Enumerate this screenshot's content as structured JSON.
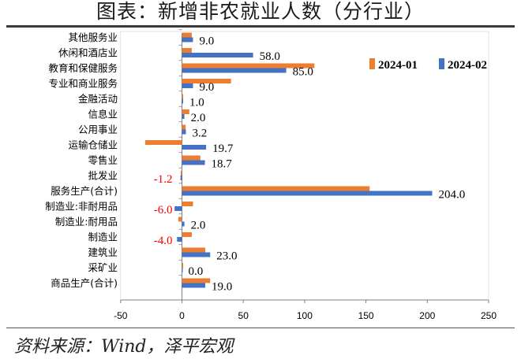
{
  "title": "图表：新增非农就业人数（分行业）",
  "source": "资料来源：Wind，泽平宏观",
  "chart_data": {
    "type": "bar",
    "orientation": "horizontal",
    "categories": [
      "其他服务业",
      "休闲和酒店业",
      "教育和保健服务",
      "专业和商业服务",
      "金融活动",
      "信息业",
      "公用事业",
      "运输仓储业",
      "零售业",
      "批发业",
      "服务生产(合计)",
      "制造业:非耐用品",
      "制造业:耐用品",
      "制造业",
      "建筑业",
      "采矿业",
      "商品生产(合计)"
    ],
    "series": [
      {
        "name": "2024-01",
        "color": "#ED7D31",
        "values": [
          8,
          8,
          108,
          40,
          1,
          6,
          3,
          -30,
          15,
          -1,
          153,
          9,
          -3,
          8,
          19,
          1,
          23
        ]
      },
      {
        "name": "2024-02",
        "color": "#4472C4",
        "values": [
          9.0,
          58.0,
          85.0,
          9.0,
          1.0,
          2.0,
          3.2,
          19.7,
          18.7,
          -1.2,
          204.0,
          -6.0,
          2.0,
          -4.0,
          23.0,
          0.0,
          19.0
        ]
      }
    ],
    "data_labels": [
      "9.0",
      "58.0",
      "85.0",
      "9.0",
      "1.0",
      "2.0",
      "3.2",
      "19.7",
      "18.7",
      "-1.2",
      "204.0",
      "-6.0",
      "2.0",
      "-4.0",
      "23.0",
      "0.0",
      "19.0"
    ],
    "xlim": [
      -50,
      250
    ],
    "xticks": [
      "-50",
      "0",
      "50",
      "100",
      "150",
      "200",
      "250"
    ],
    "legend_position": "top-right",
    "grid": false
  }
}
